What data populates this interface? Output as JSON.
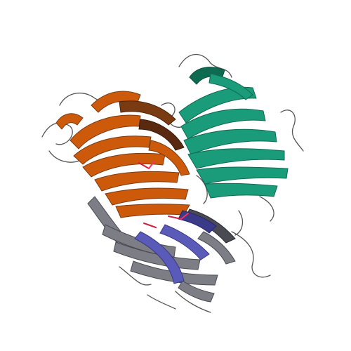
{
  "image": {
    "subject": "protein-ribbon-structure",
    "background_color": "#ffffff",
    "chains": [
      {
        "id": "orange-barrel",
        "color": "#cc5a0a",
        "shade": "#7a3a12"
      },
      {
        "id": "green-barrel",
        "color": "#1a9b7a",
        "shade": "#0f6a52"
      },
      {
        "id": "gray-barrel",
        "color": "#7d7d85",
        "shade": "#4a4a52"
      },
      {
        "id": "blue-segment",
        "color": "#5a5ab8",
        "shade": "#3a3a88"
      }
    ],
    "loop_color": "#555555",
    "ligand_colors": [
      "#d02040",
      "#ff3060"
    ]
  }
}
